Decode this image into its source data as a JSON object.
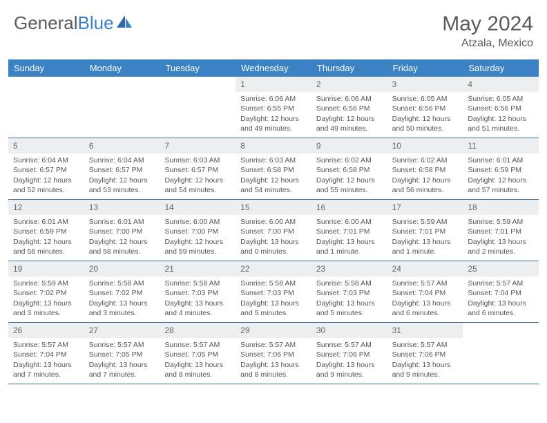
{
  "brand": {
    "part1": "General",
    "part2": "Blue"
  },
  "title": "May 2024",
  "location": "Atzala, Mexico",
  "day_names": [
    "Sunday",
    "Monday",
    "Tuesday",
    "Wednesday",
    "Thursday",
    "Friday",
    "Saturday"
  ],
  "colors": {
    "header_bg": "#3b82c4",
    "header_text": "#ffffff",
    "daynum_bg": "#eceeef",
    "border": "#3b6fa0",
    "body_text": "#555555"
  },
  "weeks": [
    [
      {
        "n": "",
        "sr": "",
        "ss": "",
        "dl": ""
      },
      {
        "n": "",
        "sr": "",
        "ss": "",
        "dl": ""
      },
      {
        "n": "",
        "sr": "",
        "ss": "",
        "dl": ""
      },
      {
        "n": "1",
        "sr": "Sunrise: 6:06 AM",
        "ss": "Sunset: 6:55 PM",
        "dl": "Daylight: 12 hours and 49 minutes."
      },
      {
        "n": "2",
        "sr": "Sunrise: 6:06 AM",
        "ss": "Sunset: 6:56 PM",
        "dl": "Daylight: 12 hours and 49 minutes."
      },
      {
        "n": "3",
        "sr": "Sunrise: 6:05 AM",
        "ss": "Sunset: 6:56 PM",
        "dl": "Daylight: 12 hours and 50 minutes."
      },
      {
        "n": "4",
        "sr": "Sunrise: 6:05 AM",
        "ss": "Sunset: 6:56 PM",
        "dl": "Daylight: 12 hours and 51 minutes."
      }
    ],
    [
      {
        "n": "5",
        "sr": "Sunrise: 6:04 AM",
        "ss": "Sunset: 6:57 PM",
        "dl": "Daylight: 12 hours and 52 minutes."
      },
      {
        "n": "6",
        "sr": "Sunrise: 6:04 AM",
        "ss": "Sunset: 6:57 PM",
        "dl": "Daylight: 12 hours and 53 minutes."
      },
      {
        "n": "7",
        "sr": "Sunrise: 6:03 AM",
        "ss": "Sunset: 6:57 PM",
        "dl": "Daylight: 12 hours and 54 minutes."
      },
      {
        "n": "8",
        "sr": "Sunrise: 6:03 AM",
        "ss": "Sunset: 6:58 PM",
        "dl": "Daylight: 12 hours and 54 minutes."
      },
      {
        "n": "9",
        "sr": "Sunrise: 6:02 AM",
        "ss": "Sunset: 6:58 PM",
        "dl": "Daylight: 12 hours and 55 minutes."
      },
      {
        "n": "10",
        "sr": "Sunrise: 6:02 AM",
        "ss": "Sunset: 6:58 PM",
        "dl": "Daylight: 12 hours and 56 minutes."
      },
      {
        "n": "11",
        "sr": "Sunrise: 6:01 AM",
        "ss": "Sunset: 6:59 PM",
        "dl": "Daylight: 12 hours and 57 minutes."
      }
    ],
    [
      {
        "n": "12",
        "sr": "Sunrise: 6:01 AM",
        "ss": "Sunset: 6:59 PM",
        "dl": "Daylight: 12 hours and 58 minutes."
      },
      {
        "n": "13",
        "sr": "Sunrise: 6:01 AM",
        "ss": "Sunset: 7:00 PM",
        "dl": "Daylight: 12 hours and 58 minutes."
      },
      {
        "n": "14",
        "sr": "Sunrise: 6:00 AM",
        "ss": "Sunset: 7:00 PM",
        "dl": "Daylight: 12 hours and 59 minutes."
      },
      {
        "n": "15",
        "sr": "Sunrise: 6:00 AM",
        "ss": "Sunset: 7:00 PM",
        "dl": "Daylight: 13 hours and 0 minutes."
      },
      {
        "n": "16",
        "sr": "Sunrise: 6:00 AM",
        "ss": "Sunset: 7:01 PM",
        "dl": "Daylight: 13 hours and 1 minute."
      },
      {
        "n": "17",
        "sr": "Sunrise: 5:59 AM",
        "ss": "Sunset: 7:01 PM",
        "dl": "Daylight: 13 hours and 1 minute."
      },
      {
        "n": "18",
        "sr": "Sunrise: 5:59 AM",
        "ss": "Sunset: 7:01 PM",
        "dl": "Daylight: 13 hours and 2 minutes."
      }
    ],
    [
      {
        "n": "19",
        "sr": "Sunrise: 5:59 AM",
        "ss": "Sunset: 7:02 PM",
        "dl": "Daylight: 13 hours and 3 minutes."
      },
      {
        "n": "20",
        "sr": "Sunrise: 5:58 AM",
        "ss": "Sunset: 7:02 PM",
        "dl": "Daylight: 13 hours and 3 minutes."
      },
      {
        "n": "21",
        "sr": "Sunrise: 5:58 AM",
        "ss": "Sunset: 7:03 PM",
        "dl": "Daylight: 13 hours and 4 minutes."
      },
      {
        "n": "22",
        "sr": "Sunrise: 5:58 AM",
        "ss": "Sunset: 7:03 PM",
        "dl": "Daylight: 13 hours and 5 minutes."
      },
      {
        "n": "23",
        "sr": "Sunrise: 5:58 AM",
        "ss": "Sunset: 7:03 PM",
        "dl": "Daylight: 13 hours and 5 minutes."
      },
      {
        "n": "24",
        "sr": "Sunrise: 5:57 AM",
        "ss": "Sunset: 7:04 PM",
        "dl": "Daylight: 13 hours and 6 minutes."
      },
      {
        "n": "25",
        "sr": "Sunrise: 5:57 AM",
        "ss": "Sunset: 7:04 PM",
        "dl": "Daylight: 13 hours and 6 minutes."
      }
    ],
    [
      {
        "n": "26",
        "sr": "Sunrise: 5:57 AM",
        "ss": "Sunset: 7:04 PM",
        "dl": "Daylight: 13 hours and 7 minutes."
      },
      {
        "n": "27",
        "sr": "Sunrise: 5:57 AM",
        "ss": "Sunset: 7:05 PM",
        "dl": "Daylight: 13 hours and 7 minutes."
      },
      {
        "n": "28",
        "sr": "Sunrise: 5:57 AM",
        "ss": "Sunset: 7:05 PM",
        "dl": "Daylight: 13 hours and 8 minutes."
      },
      {
        "n": "29",
        "sr": "Sunrise: 5:57 AM",
        "ss": "Sunset: 7:06 PM",
        "dl": "Daylight: 13 hours and 8 minutes."
      },
      {
        "n": "30",
        "sr": "Sunrise: 5:57 AM",
        "ss": "Sunset: 7:06 PM",
        "dl": "Daylight: 13 hours and 9 minutes."
      },
      {
        "n": "31",
        "sr": "Sunrise: 5:57 AM",
        "ss": "Sunset: 7:06 PM",
        "dl": "Daylight: 13 hours and 9 minutes."
      },
      {
        "n": "",
        "sr": "",
        "ss": "",
        "dl": ""
      }
    ]
  ]
}
